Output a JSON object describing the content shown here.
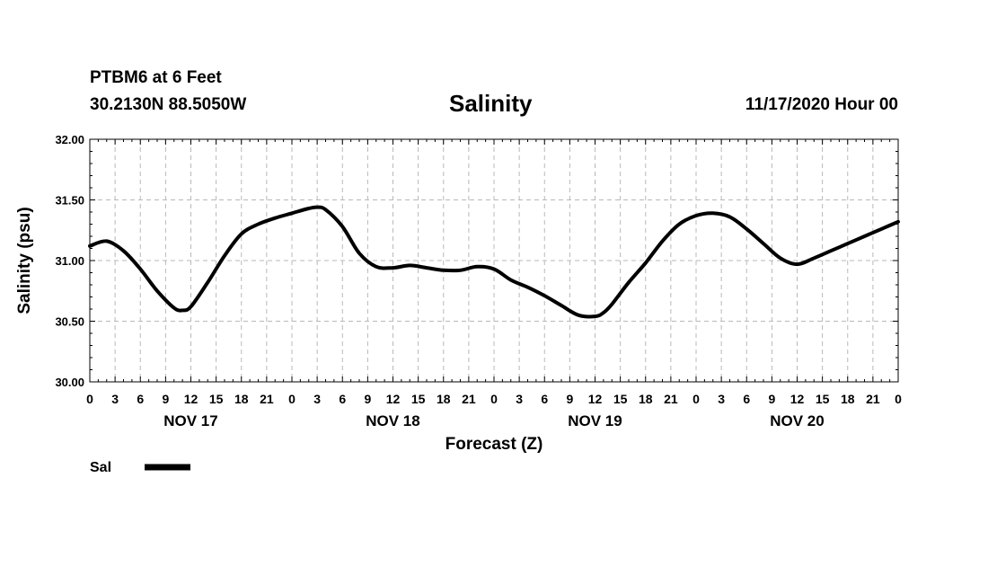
{
  "header": {
    "station": "PTBM6 at 6 Feet",
    "coords": "30.2130N 88.5050W",
    "title": "Salinity",
    "run": "11/17/2020 Hour 00"
  },
  "chart_data": {
    "type": "line",
    "title": "Salinity",
    "xlabel": "Forecast (Z)",
    "ylabel": "Salinity (psu)",
    "ylim": [
      30.0,
      32.0
    ],
    "yticks": [
      "30.00",
      "30.50",
      "31.00",
      "31.50",
      "32.00"
    ],
    "xlim_hours": [
      0,
      96
    ],
    "xtick_labels": [
      "0",
      "3",
      "6",
      "9",
      "12",
      "15",
      "18",
      "21",
      "0",
      "3",
      "6",
      "9",
      "12",
      "15",
      "18",
      "21",
      "0",
      "3",
      "6",
      "9",
      "12",
      "15",
      "18",
      "21",
      "0",
      "3",
      "6",
      "9",
      "12",
      "15",
      "18",
      "21",
      "0"
    ],
    "day_labels": [
      {
        "label": "NOV 17",
        "hour": 12
      },
      {
        "label": "NOV 18",
        "hour": 36
      },
      {
        "label": "NOV 19",
        "hour": 60
      },
      {
        "label": "NOV 20",
        "hour": 84
      }
    ],
    "grid": true,
    "legend_position": "bottom-left",
    "series": [
      {
        "name": "Sal",
        "color": "#000000",
        "x": [
          0,
          2,
          4,
          6,
          8,
          10,
          11,
          12,
          14,
          16,
          18,
          20,
          22,
          24,
          26,
          27,
          28,
          30,
          32,
          34,
          36,
          38,
          40,
          42,
          44,
          46,
          48,
          50,
          52,
          54,
          56,
          58,
          60,
          61,
          62,
          64,
          66,
          68,
          70,
          72,
          74,
          76,
          78,
          80,
          82,
          84,
          86,
          88,
          90,
          92,
          94,
          96
        ],
        "y": [
          31.12,
          31.16,
          31.08,
          30.93,
          30.75,
          30.61,
          30.59,
          30.62,
          30.82,
          31.04,
          31.22,
          31.3,
          31.35,
          31.39,
          31.43,
          31.44,
          31.42,
          31.28,
          31.06,
          30.95,
          30.94,
          30.96,
          30.94,
          30.92,
          30.92,
          30.95,
          30.93,
          30.84,
          30.78,
          30.71,
          30.63,
          30.55,
          30.54,
          30.57,
          30.64,
          30.82,
          30.98,
          31.16,
          31.3,
          31.37,
          31.39,
          31.36,
          31.26,
          31.14,
          31.02,
          30.97,
          31.02,
          31.08,
          31.14,
          31.2,
          31.26,
          31.32
        ]
      }
    ]
  }
}
